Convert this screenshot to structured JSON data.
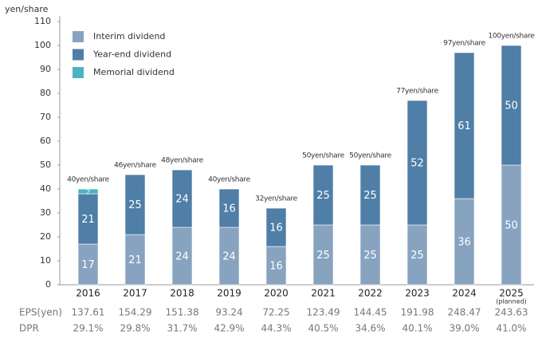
{
  "chart_data": {
    "type": "stacked_bar",
    "y_axis_label": "yen/share",
    "categories": [
      "2016",
      "2017",
      "2018",
      "2019",
      "2020",
      "2021",
      "2022",
      "2023",
      "2024",
      "2025"
    ],
    "category_note": "(planned)",
    "series": [
      {
        "name": "Interim dividend",
        "color": "#87a3bf",
        "values": [
          17,
          21,
          24,
          24,
          16,
          25,
          25,
          25,
          36,
          50
        ]
      },
      {
        "name": "Year-end dividend",
        "color": "#4f7ea6",
        "values": [
          21,
          25,
          24,
          16,
          16,
          25,
          25,
          52,
          61,
          50
        ]
      },
      {
        "name": "Memorial dividend",
        "color": "#4cb3c4",
        "values": [
          2,
          null,
          null,
          null,
          null,
          null,
          null,
          null,
          null,
          null
        ]
      }
    ],
    "total_labels": [
      "40yen/share",
      "46yen/share",
      "48yen/share",
      "40yen/share",
      "32yen/share",
      "50yen/share",
      "50yen/share",
      "77yen/share",
      "97yen/share",
      "100yen/share"
    ],
    "ylim": [
      0,
      110
    ],
    "yticks": [
      0,
      10,
      20,
      30,
      40,
      50,
      60,
      70,
      80,
      90,
      100,
      110
    ],
    "grid": false,
    "legend": "top-left"
  },
  "table": {
    "rows": [
      {
        "label": "EPS(yen)",
        "cells": [
          137.61,
          154.29,
          151.38,
          93.24,
          72.25,
          123.49,
          144.45,
          191.98,
          248.47,
          243.63
        ]
      },
      {
        "label": "DPR",
        "cells": [
          "29.1%",
          "29.8%",
          "31.7%",
          "42.9%",
          "44.3%",
          "40.5%",
          "34.6%",
          "40.1%",
          "39.0%",
          "41.0%"
        ]
      }
    ]
  }
}
